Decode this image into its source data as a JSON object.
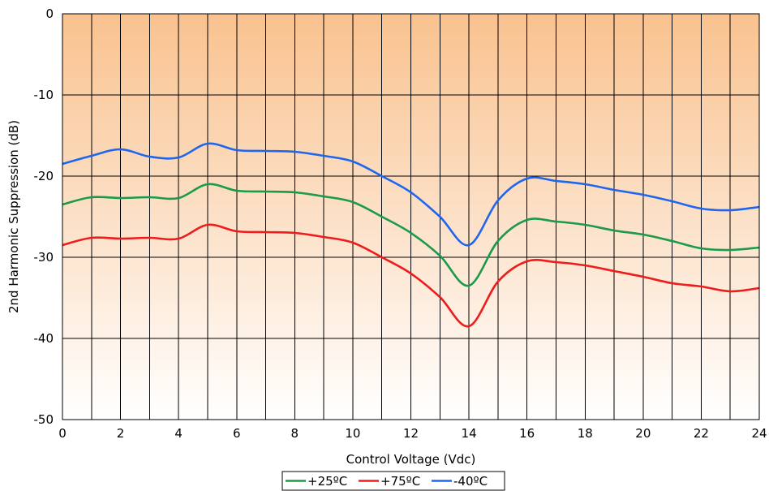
{
  "chart_data": {
    "type": "line",
    "title": "",
    "xlabel": "Control Voltage (Vdc)",
    "ylabel": "2nd Harmonic Suppression (dB)",
    "xlim": [
      0,
      24
    ],
    "ylim": [
      -50,
      0
    ],
    "x_ticks": [
      "0",
      "2",
      "4",
      "6",
      "8",
      "10",
      "12",
      "14",
      "16",
      "18",
      "20",
      "22",
      "24"
    ],
    "y_ticks": [
      "0",
      "-10",
      "-20",
      "-30",
      "-40",
      "-50"
    ],
    "grid": "vertical every 1 Vdc, horizontal every 10 dB",
    "background": {
      "top_color": "#f9c28f",
      "bottom_color": "#ffffff"
    },
    "legend_position": "bottom-center",
    "x": [
      0,
      1,
      2,
      3,
      4,
      5,
      6,
      7,
      8,
      9,
      10,
      11,
      12,
      13,
      14,
      15,
      16,
      17,
      18,
      19,
      20,
      21,
      22,
      23,
      24
    ],
    "series": [
      {
        "name": "+25ºC",
        "color": "#1a9a4a",
        "values": [
          -23.5,
          -22.6,
          -22.7,
          -22.6,
          -22.7,
          -21.0,
          -21.8,
          -21.9,
          -22.0,
          -22.5,
          -23.2,
          -25.0,
          -27.0,
          -29.8,
          -33.5,
          -28.0,
          -25.4,
          -25.6,
          -26.0,
          -26.7,
          -27.2,
          -28.0,
          -28.9,
          -29.1,
          -28.8
        ]
      },
      {
        "name": "+75ºC",
        "color": "#ee1c1c",
        "values": [
          -28.5,
          -27.6,
          -27.7,
          -27.6,
          -27.7,
          -26.0,
          -26.8,
          -26.9,
          -27.0,
          -27.5,
          -28.2,
          -30.0,
          -32.0,
          -34.9,
          -38.5,
          -33.0,
          -30.5,
          -30.6,
          -31.0,
          -31.7,
          -32.4,
          -33.2,
          -33.6,
          -34.2,
          -33.8
        ]
      },
      {
        "name": "-40ºC",
        "color": "#1e66f0",
        "values": [
          -18.5,
          -17.5,
          -16.7,
          -17.6,
          -17.7,
          -16.0,
          -16.8,
          -16.9,
          -17.0,
          -17.5,
          -18.2,
          -20.0,
          -22.0,
          -25.0,
          -28.5,
          -23.0,
          -20.3,
          -20.6,
          -21.0,
          -21.7,
          -22.3,
          -23.1,
          -24.0,
          -24.2,
          -23.8
        ]
      }
    ]
  }
}
